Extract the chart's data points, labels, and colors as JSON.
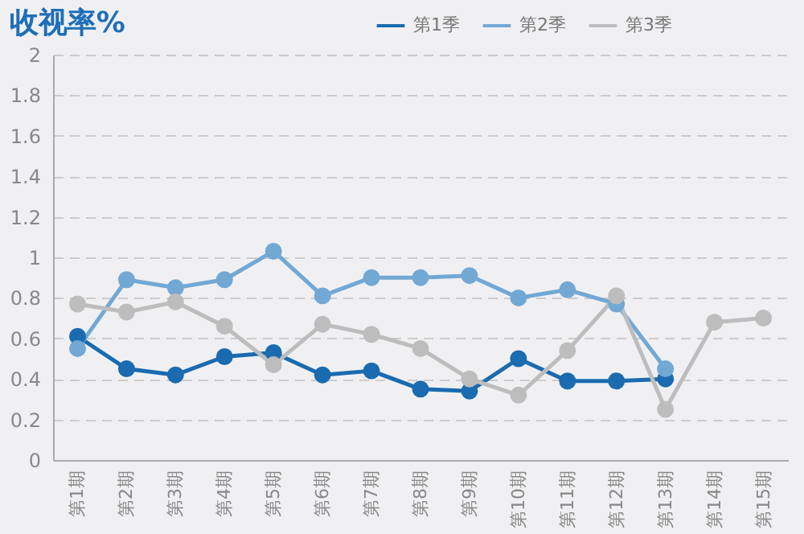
{
  "chart_data": {
    "type": "line",
    "title": "收视率%",
    "categories": [
      "第1期",
      "第2期",
      "第3期",
      "第4期",
      "第5期",
      "第6期",
      "第7期",
      "第8期",
      "第9期",
      "第10期",
      "第11期",
      "第12期",
      "第13期",
      "第14期",
      "第15期"
    ],
    "series": [
      {
        "name": "第1季",
        "color": "#1a6bb0",
        "values": [
          0.61,
          0.45,
          0.42,
          0.51,
          0.53,
          0.42,
          0.44,
          0.35,
          0.34,
          0.5,
          0.39,
          0.39,
          0.4,
          null,
          null
        ]
      },
      {
        "name": "第2季",
        "color": "#72a8d4",
        "values": [
          0.55,
          0.89,
          0.85,
          0.89,
          1.03,
          0.81,
          0.9,
          0.9,
          0.91,
          0.8,
          0.84,
          0.77,
          0.45,
          null,
          null
        ]
      },
      {
        "name": "第3季",
        "color": "#bdbdbd",
        "values": [
          0.77,
          0.73,
          0.78,
          0.66,
          0.47,
          0.67,
          0.62,
          0.55,
          0.4,
          0.32,
          0.54,
          0.81,
          0.25,
          0.68,
          0.7
        ]
      }
    ],
    "ylim": [
      0,
      2
    ],
    "yticks": [
      0,
      0.2,
      0.4,
      0.6,
      0.8,
      1,
      1.2,
      1.4,
      1.6,
      1.8,
      2
    ],
    "grid": "y",
    "legend": "top right",
    "marker": "circle",
    "line_style": "solid"
  }
}
